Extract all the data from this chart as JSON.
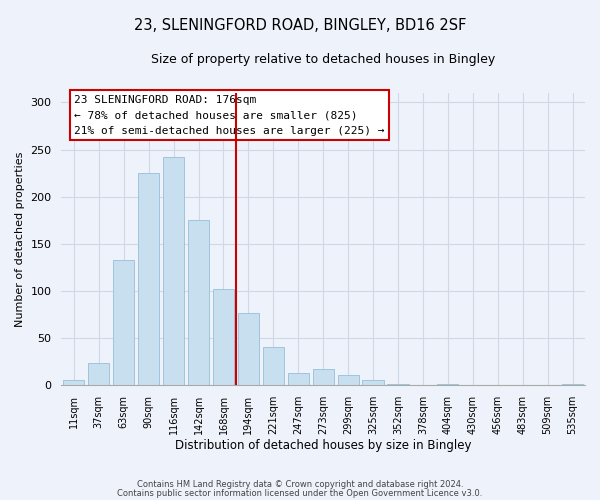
{
  "title": "23, SLENINGFORD ROAD, BINGLEY, BD16 2SF",
  "subtitle": "Size of property relative to detached houses in Bingley",
  "xlabel": "Distribution of detached houses by size in Bingley",
  "ylabel": "Number of detached properties",
  "bar_color": "#c8dff0",
  "bar_edge_color": "#a0c4dc",
  "background_color": "#eef2fa",
  "grid_color": "#d0d8e8",
  "categories": [
    "11sqm",
    "37sqm",
    "63sqm",
    "90sqm",
    "116sqm",
    "142sqm",
    "168sqm",
    "194sqm",
    "221sqm",
    "247sqm",
    "273sqm",
    "299sqm",
    "325sqm",
    "352sqm",
    "378sqm",
    "404sqm",
    "430sqm",
    "456sqm",
    "483sqm",
    "509sqm",
    "535sqm"
  ],
  "values": [
    5,
    23,
    133,
    225,
    242,
    175,
    102,
    76,
    40,
    13,
    17,
    10,
    5,
    1,
    0,
    1,
    0,
    0,
    0,
    0,
    1
  ],
  "vline_x": 6.5,
  "vline_color": "#cc0000",
  "ylim": [
    0,
    310
  ],
  "yticks": [
    0,
    50,
    100,
    150,
    200,
    250,
    300
  ],
  "annotation_title": "23 SLENINGFORD ROAD: 176sqm",
  "annotation_line1": "← 78% of detached houses are smaller (825)",
  "annotation_line2": "21% of semi-detached houses are larger (225) →",
  "footer1": "Contains HM Land Registry data © Crown copyright and database right 2024.",
  "footer2": "Contains public sector information licensed under the Open Government Licence v3.0."
}
